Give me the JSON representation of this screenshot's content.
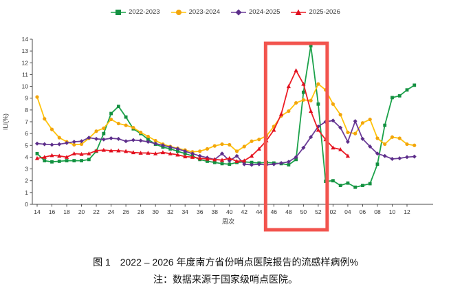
{
  "figure": {
    "caption_line1": "图 1　2022 – 2026 年度南方省份哨点医院报告的流感样病例%",
    "caption_line2": "注：数据来源于国家级哨点医院。"
  },
  "chart_data": {
    "type": "line",
    "x_axis_label": "周次",
    "y_axis_label": "ILI(%)",
    "ylim": [
      0,
      14
    ],
    "y_tick_labels": [
      "0",
      "1",
      "2",
      "3",
      "4",
      "5",
      "6",
      "7",
      "8",
      "9",
      "10",
      "11",
      "12",
      "13",
      "14"
    ],
    "x_tick_labels": [
      "14",
      "16",
      "18",
      "20",
      "22",
      "24",
      "26",
      "28",
      "30",
      "32",
      "34",
      "36",
      "38",
      "40",
      "42",
      "44",
      "46",
      "48",
      "50",
      "52",
      "02",
      "04",
      "06",
      "08",
      "10",
      "12"
    ],
    "weeks": [
      "14",
      "15",
      "16",
      "17",
      "18",
      "19",
      "20",
      "21",
      "22",
      "23",
      "24",
      "25",
      "26",
      "27",
      "28",
      "29",
      "30",
      "31",
      "32",
      "33",
      "34",
      "35",
      "36",
      "37",
      "38",
      "39",
      "40",
      "41",
      "42",
      "43",
      "44",
      "45",
      "46",
      "47",
      "48",
      "49",
      "50",
      "51",
      "52",
      "01",
      "02",
      "03",
      "04",
      "05",
      "06",
      "07",
      "08",
      "09",
      "10",
      "11",
      "12",
      "13"
    ],
    "grid": false,
    "legend_position": "top-center",
    "highlight_box": {
      "from_week": "46",
      "to_week": "52",
      "color": "#F2544E",
      "meaning": "highlighted-recent-weeks"
    },
    "series": [
      {
        "name": "2022-2023",
        "color": "#1BA24A",
        "marker_color": "#149041",
        "marker": "square",
        "values": [
          4.3,
          3.7,
          3.6,
          3.65,
          3.7,
          3.7,
          3.7,
          3.8,
          4.5,
          6.0,
          7.7,
          8.3,
          7.4,
          6.4,
          6.0,
          5.5,
          5.1,
          4.85,
          4.7,
          4.5,
          4.3,
          4.1,
          3.8,
          3.65,
          3.55,
          3.45,
          3.4,
          3.55,
          3.6,
          3.55,
          3.5,
          3.55,
          3.5,
          3.45,
          3.35,
          3.8,
          9.5,
          13.45,
          8.5,
          1.95,
          2.0,
          1.6,
          1.8,
          1.45,
          1.6,
          1.75,
          3.4,
          6.7,
          9.05,
          9.2,
          9.7,
          10.1
        ]
      },
      {
        "name": "2023-2024",
        "color": "#FFC30B",
        "marker_color": "#F2A50C",
        "marker": "circle",
        "values": [
          9.1,
          7.25,
          6.35,
          5.65,
          5.3,
          5.05,
          5.1,
          5.6,
          6.2,
          6.45,
          7.2,
          6.85,
          6.7,
          6.5,
          6.1,
          5.75,
          5.4,
          5.1,
          4.9,
          4.75,
          4.6,
          4.45,
          4.5,
          4.7,
          4.95,
          5.1,
          5.05,
          4.5,
          4.9,
          5.35,
          5.5,
          5.8,
          6.6,
          7.5,
          7.9,
          8.6,
          8.85,
          8.8,
          10.2,
          9.7,
          8.5,
          7.6,
          6.1,
          6.0,
          6.9,
          7.2,
          5.6,
          5.1,
          5.7,
          5.6,
          5.1,
          5.0
        ]
      },
      {
        "name": "2024-2025",
        "color": "#6C3D98",
        "marker_color": "#5C2E8A",
        "marker": "diamond",
        "values": [
          5.15,
          5.1,
          5.05,
          5.1,
          5.2,
          5.3,
          5.35,
          5.65,
          5.55,
          5.5,
          5.6,
          5.55,
          5.35,
          5.45,
          5.4,
          5.3,
          5.15,
          5.0,
          4.85,
          4.7,
          4.5,
          4.3,
          4.1,
          3.95,
          3.8,
          4.3,
          3.7,
          4.1,
          3.4,
          3.35,
          3.4,
          3.35,
          3.4,
          3.5,
          3.6,
          4.0,
          4.8,
          5.7,
          6.6,
          7.0,
          7.1,
          6.5,
          5.3,
          7.05,
          5.55,
          4.9,
          4.3,
          4.1,
          3.85,
          3.9,
          4.0,
          4.05
        ]
      },
      {
        "name": "2025-2026",
        "color": "#EC1C24",
        "marker_color": "#E01020",
        "marker": "triangle",
        "values": [
          3.9,
          4.0,
          4.15,
          4.1,
          4.0,
          4.3,
          4.25,
          4.3,
          4.55,
          4.6,
          4.55,
          4.55,
          4.5,
          4.4,
          4.35,
          4.35,
          4.3,
          4.4,
          4.3,
          4.2,
          4.05,
          4.0,
          3.9,
          3.85,
          3.8,
          3.75,
          3.9,
          3.65,
          3.7,
          4.1,
          4.7,
          5.4,
          6.3,
          7.65,
          10.0,
          11.35,
          10.2,
          7.9,
          6.3,
          5.5,
          4.8,
          4.65,
          4.1,
          null,
          null,
          null,
          null,
          null,
          null,
          null,
          null,
          null
        ]
      }
    ]
  }
}
